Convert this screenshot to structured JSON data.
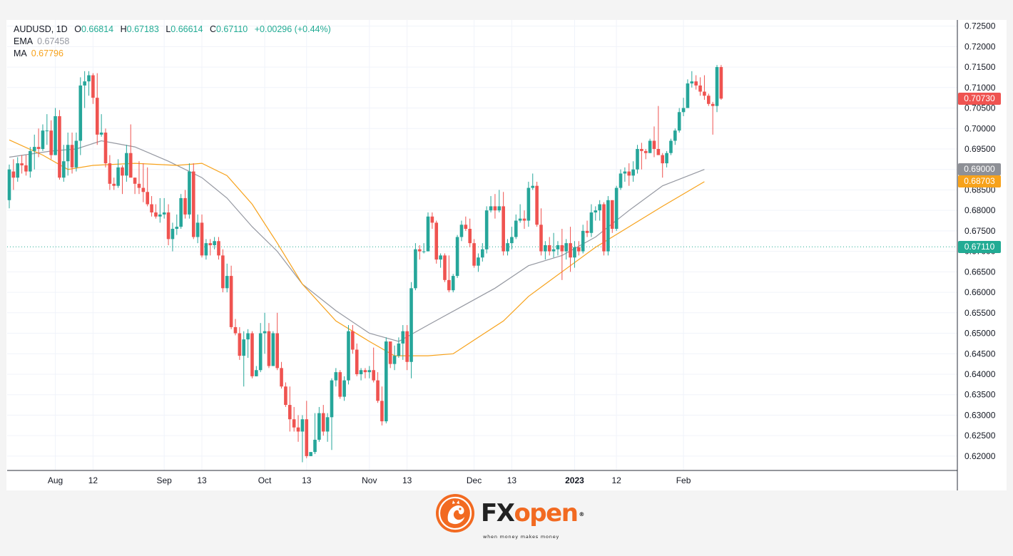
{
  "legend": {
    "symbol": "AUDUSD, 1D",
    "o_label": "O",
    "o_value": "0.66814",
    "h_label": "H",
    "h_value": "0.67183",
    "l_label": "L",
    "l_value": "0.66614",
    "c_label": "C",
    "c_value": "0.67110",
    "change": "+0.00296 (+0.44%)",
    "ema_label": "EMA",
    "ema_value": "0.67458",
    "ma_label": "MA",
    "ma_value": "0.67796"
  },
  "price_tags": {
    "last_close": "0.70730",
    "ema": "0.69000",
    "ma": "0.68703",
    "crosshair": "0.67110"
  },
  "colors": {
    "up": "#26a69a",
    "down": "#ef5350",
    "ema": "#9598a1",
    "ma": "#f7a21b",
    "tag_last": "#ef5350",
    "tag_ema": "#8e9096",
    "tag_ma": "#f7a21b",
    "tag_cross": "#22ab94",
    "brand_orange": "#f26a21"
  },
  "brand": {
    "name_part1": "FX",
    "name_part2": "open",
    "tagline": "when money makes money",
    "reg_mark": "®",
    "logo_icon": "dragon-logo-icon"
  },
  "chart_data": {
    "type": "candlestick",
    "symbol": "AUDUSD",
    "timeframe": "1D",
    "ylim": [
      0.6165,
      0.7265
    ],
    "y_ticks": [
      "0.72500",
      "0.72000",
      "0.71500",
      "0.71000",
      "0.70500",
      "0.70000",
      "0.69500",
      "0.69000",
      "0.68500",
      "0.68000",
      "0.67500",
      "0.67000",
      "0.66500",
      "0.66000",
      "0.65500",
      "0.65000",
      "0.64500",
      "0.64000",
      "0.63500",
      "0.63000",
      "0.62500",
      "0.62000"
    ],
    "x_labels": [
      {
        "label": "Aug",
        "index": 11,
        "bold": false
      },
      {
        "label": "12",
        "index": 20,
        "bold": false
      },
      {
        "label": "Sep",
        "index": 37,
        "bold": false
      },
      {
        "label": "13",
        "index": 46,
        "bold": false
      },
      {
        "label": "Oct",
        "index": 61,
        "bold": false
      },
      {
        "label": "13",
        "index": 71,
        "bold": false
      },
      {
        "label": "Nov",
        "index": 86,
        "bold": false
      },
      {
        "label": "13",
        "index": 95,
        "bold": false
      },
      {
        "label": "Dec",
        "index": 111,
        "bold": false
      },
      {
        "label": "13",
        "index": 120,
        "bold": false
      },
      {
        "label": "2023",
        "index": 135,
        "bold": true
      },
      {
        "label": "12",
        "index": 145,
        "bold": false
      },
      {
        "label": "Feb",
        "index": 161,
        "bold": false
      }
    ],
    "grid": true,
    "ohlc": [
      [
        0.6825,
        0.6912,
        0.6805,
        0.69
      ],
      [
        0.6895,
        0.6925,
        0.685,
        0.688
      ],
      [
        0.688,
        0.693,
        0.687,
        0.6915
      ],
      [
        0.6915,
        0.6935,
        0.689,
        0.691
      ],
      [
        0.691,
        0.6935,
        0.6885,
        0.6895
      ],
      [
        0.6895,
        0.6955,
        0.688,
        0.6945
      ],
      [
        0.6945,
        0.6985,
        0.69,
        0.6955
      ],
      [
        0.6955,
        0.7,
        0.693,
        0.695
      ],
      [
        0.695,
        0.701,
        0.6945,
        0.6995
      ],
      [
        0.6995,
        0.7035,
        0.696,
        0.6995
      ],
      [
        0.6995,
        0.702,
        0.6925,
        0.6935
      ],
      [
        0.6935,
        0.705,
        0.6935,
        0.703
      ],
      [
        0.703,
        0.7045,
        0.6875,
        0.688
      ],
      [
        0.688,
        0.696,
        0.687,
        0.692
      ],
      [
        0.692,
        0.699,
        0.6885,
        0.696
      ],
      [
        0.696,
        0.699,
        0.689,
        0.6905
      ],
      [
        0.6905,
        0.699,
        0.6895,
        0.697
      ],
      [
        0.697,
        0.7125,
        0.6935,
        0.7105
      ],
      [
        0.7105,
        0.714,
        0.705,
        0.7115
      ],
      [
        0.7115,
        0.714,
        0.708,
        0.713
      ],
      [
        0.713,
        0.7135,
        0.706,
        0.7075
      ],
      [
        0.7075,
        0.7135,
        0.696,
        0.6985
      ],
      [
        0.6985,
        0.7035,
        0.698,
        0.699
      ],
      [
        0.699,
        0.7,
        0.6905,
        0.6915
      ],
      [
        0.6915,
        0.6935,
        0.685,
        0.6865
      ],
      [
        0.6865,
        0.688,
        0.685,
        0.686
      ],
      [
        0.686,
        0.6925,
        0.6855,
        0.6905
      ],
      [
        0.6905,
        0.691,
        0.684,
        0.6885
      ],
      [
        0.6885,
        0.696,
        0.687,
        0.694
      ],
      [
        0.694,
        0.701,
        0.6885,
        0.688
      ],
      [
        0.688,
        0.688,
        0.684,
        0.6865
      ],
      [
        0.6865,
        0.692,
        0.684,
        0.6855
      ],
      [
        0.6855,
        0.6915,
        0.682,
        0.6845
      ],
      [
        0.6845,
        0.6905,
        0.681,
        0.6815
      ],
      [
        0.6815,
        0.6835,
        0.6785,
        0.6795
      ],
      [
        0.6795,
        0.6815,
        0.678,
        0.6785
      ],
      [
        0.6785,
        0.683,
        0.677,
        0.679
      ],
      [
        0.679,
        0.683,
        0.678,
        0.6795
      ],
      [
        0.6795,
        0.6815,
        0.6715,
        0.673
      ],
      [
        0.673,
        0.677,
        0.67,
        0.6755
      ],
      [
        0.6755,
        0.679,
        0.674,
        0.676
      ],
      [
        0.676,
        0.684,
        0.6755,
        0.683
      ],
      [
        0.683,
        0.685,
        0.678,
        0.679
      ],
      [
        0.679,
        0.6915,
        0.678,
        0.6895
      ],
      [
        0.6895,
        0.6915,
        0.673,
        0.6735
      ],
      [
        0.6735,
        0.679,
        0.672,
        0.677
      ],
      [
        0.677,
        0.679,
        0.6685,
        0.669
      ],
      [
        0.669,
        0.673,
        0.668,
        0.672
      ],
      [
        0.672,
        0.673,
        0.669,
        0.6715
      ],
      [
        0.6715,
        0.6735,
        0.6705,
        0.6725
      ],
      [
        0.6725,
        0.6735,
        0.668,
        0.669
      ],
      [
        0.669,
        0.6705,
        0.66,
        0.661
      ],
      [
        0.661,
        0.667,
        0.66,
        0.664
      ],
      [
        0.664,
        0.6665,
        0.651,
        0.6515
      ],
      [
        0.6515,
        0.6535,
        0.6495,
        0.65
      ],
      [
        0.65,
        0.6515,
        0.6435,
        0.6445
      ],
      [
        0.6445,
        0.6505,
        0.637,
        0.6485
      ],
      [
        0.6485,
        0.651,
        0.644,
        0.65
      ],
      [
        0.65,
        0.6505,
        0.639,
        0.6395
      ],
      [
        0.6395,
        0.642,
        0.6395,
        0.641
      ],
      [
        0.641,
        0.6525,
        0.6405,
        0.65
      ],
      [
        0.65,
        0.655,
        0.645,
        0.6505
      ],
      [
        0.6505,
        0.6525,
        0.6415,
        0.642
      ],
      [
        0.642,
        0.6505,
        0.642,
        0.65
      ],
      [
        0.65,
        0.655,
        0.641,
        0.6415
      ],
      [
        0.6415,
        0.643,
        0.6365,
        0.637
      ],
      [
        0.637,
        0.638,
        0.632,
        0.6325
      ],
      [
        0.6325,
        0.637,
        0.626,
        0.629
      ],
      [
        0.629,
        0.632,
        0.626,
        0.627
      ],
      [
        0.627,
        0.63,
        0.6235,
        0.626
      ],
      [
        0.626,
        0.63,
        0.6185,
        0.629
      ],
      [
        0.629,
        0.6335,
        0.6195,
        0.62
      ],
      [
        0.62,
        0.621,
        0.62,
        0.621
      ],
      [
        0.621,
        0.6305,
        0.6205,
        0.624
      ],
      [
        0.624,
        0.632,
        0.6235,
        0.6305
      ],
      [
        0.6305,
        0.6325,
        0.625,
        0.626
      ],
      [
        0.626,
        0.6305,
        0.6235,
        0.6295
      ],
      [
        0.6295,
        0.639,
        0.6215,
        0.6385
      ],
      [
        0.6385,
        0.6415,
        0.637,
        0.6405
      ],
      [
        0.6405,
        0.641,
        0.634,
        0.6345
      ],
      [
        0.6345,
        0.6395,
        0.6335,
        0.6385
      ],
      [
        0.6385,
        0.652,
        0.6375,
        0.6505
      ],
      [
        0.6505,
        0.652,
        0.645,
        0.646
      ],
      [
        0.646,
        0.6475,
        0.6395,
        0.64
      ],
      [
        0.64,
        0.6415,
        0.6385,
        0.641
      ],
      [
        0.641,
        0.6415,
        0.639,
        0.6405
      ],
      [
        0.6405,
        0.642,
        0.639,
        0.641
      ],
      [
        0.641,
        0.6465,
        0.638,
        0.6385
      ],
      [
        0.6385,
        0.6405,
        0.633,
        0.6335
      ],
      [
        0.6335,
        0.637,
        0.6275,
        0.6285
      ],
      [
        0.6285,
        0.649,
        0.628,
        0.648
      ],
      [
        0.648,
        0.648,
        0.6415,
        0.6425
      ],
      [
        0.6425,
        0.647,
        0.641,
        0.6445
      ],
      [
        0.6445,
        0.649,
        0.644,
        0.6475
      ],
      [
        0.6475,
        0.652,
        0.6435,
        0.6505
      ],
      [
        0.6505,
        0.652,
        0.641,
        0.643
      ],
      [
        0.643,
        0.6625,
        0.639,
        0.661
      ],
      [
        0.661,
        0.672,
        0.6605,
        0.6705
      ],
      [
        0.6705,
        0.6715,
        0.668,
        0.67
      ],
      [
        0.67,
        0.672,
        0.6695,
        0.67
      ],
      [
        0.67,
        0.6795,
        0.67,
        0.6785
      ],
      [
        0.6785,
        0.6795,
        0.6755,
        0.677
      ],
      [
        0.677,
        0.6775,
        0.667,
        0.668
      ],
      [
        0.668,
        0.6695,
        0.666,
        0.669
      ],
      [
        0.669,
        0.6695,
        0.6625,
        0.663
      ],
      [
        0.663,
        0.669,
        0.66,
        0.6605
      ],
      [
        0.6605,
        0.6645,
        0.66,
        0.664
      ],
      [
        0.664,
        0.674,
        0.6635,
        0.6735
      ],
      [
        0.6735,
        0.6775,
        0.6725,
        0.6765
      ],
      [
        0.6765,
        0.6785,
        0.675,
        0.6755
      ],
      [
        0.6755,
        0.678,
        0.671,
        0.672
      ],
      [
        0.672,
        0.673,
        0.666,
        0.6665
      ],
      [
        0.6665,
        0.6695,
        0.665,
        0.6685
      ],
      [
        0.6685,
        0.672,
        0.6675,
        0.6705
      ],
      [
        0.6705,
        0.681,
        0.6695,
        0.68
      ],
      [
        0.68,
        0.6835,
        0.6795,
        0.681
      ],
      [
        0.681,
        0.684,
        0.678,
        0.68
      ],
      [
        0.68,
        0.685,
        0.6795,
        0.681
      ],
      [
        0.681,
        0.6845,
        0.669,
        0.67
      ],
      [
        0.67,
        0.673,
        0.669,
        0.672
      ],
      [
        0.672,
        0.676,
        0.6705,
        0.6735
      ],
      [
        0.6735,
        0.679,
        0.673,
        0.6775
      ],
      [
        0.6775,
        0.6815,
        0.677,
        0.678
      ],
      [
        0.678,
        0.68,
        0.6755,
        0.6775
      ],
      [
        0.6775,
        0.687,
        0.676,
        0.6855
      ],
      [
        0.6855,
        0.689,
        0.685,
        0.686
      ],
      [
        0.686,
        0.687,
        0.676,
        0.6765
      ],
      [
        0.6765,
        0.6805,
        0.669,
        0.67
      ],
      [
        0.67,
        0.6725,
        0.668,
        0.6715
      ],
      [
        0.6715,
        0.6735,
        0.669,
        0.67
      ],
      [
        0.67,
        0.6745,
        0.6685,
        0.6705
      ],
      [
        0.6705,
        0.6725,
        0.669,
        0.6715
      ],
      [
        0.6715,
        0.6755,
        0.663,
        0.67
      ],
      [
        0.67,
        0.673,
        0.668,
        0.672
      ],
      [
        0.672,
        0.676,
        0.665,
        0.6685
      ],
      [
        0.6685,
        0.6725,
        0.666,
        0.671
      ],
      [
        0.671,
        0.6725,
        0.669,
        0.67
      ],
      [
        0.67,
        0.6765,
        0.6695,
        0.675
      ],
      [
        0.675,
        0.6775,
        0.6735,
        0.6745
      ],
      [
        0.6745,
        0.6815,
        0.6735,
        0.6795
      ],
      [
        0.6795,
        0.681,
        0.6775,
        0.68
      ],
      [
        0.68,
        0.6825,
        0.6775,
        0.6815
      ],
      [
        0.6815,
        0.682,
        0.669,
        0.67
      ],
      [
        0.67,
        0.6835,
        0.669,
        0.6825
      ],
      [
        0.6825,
        0.6825,
        0.6745,
        0.6755
      ],
      [
        0.6755,
        0.686,
        0.675,
        0.6855
      ],
      [
        0.6855,
        0.69,
        0.685,
        0.689
      ],
      [
        0.689,
        0.6905,
        0.687,
        0.6895
      ],
      [
        0.6895,
        0.6915,
        0.686,
        0.6885
      ],
      [
        0.6885,
        0.692,
        0.687,
        0.69
      ],
      [
        0.69,
        0.696,
        0.689,
        0.695
      ],
      [
        0.695,
        0.6965,
        0.69,
        0.6945
      ],
      [
        0.6945,
        0.695,
        0.6925,
        0.694
      ],
      [
        0.694,
        0.6975,
        0.694,
        0.697
      ],
      [
        0.697,
        0.7005,
        0.693,
        0.695
      ],
      [
        0.695,
        0.7055,
        0.6945,
        0.6935
      ],
      [
        0.6935,
        0.694,
        0.688,
        0.6915
      ],
      [
        0.6915,
        0.6945,
        0.6905,
        0.694
      ],
      [
        0.694,
        0.6975,
        0.6935,
        0.697
      ],
      [
        0.697,
        0.7,
        0.696,
        0.6995
      ],
      [
        0.6995,
        0.705,
        0.699,
        0.704
      ],
      [
        0.704,
        0.7075,
        0.703,
        0.705
      ],
      [
        0.705,
        0.712,
        0.705,
        0.711
      ],
      [
        0.711,
        0.714,
        0.71,
        0.7115
      ],
      [
        0.7115,
        0.713,
        0.7095,
        0.7105
      ],
      [
        0.7105,
        0.7125,
        0.708,
        0.709
      ],
      [
        0.709,
        0.713,
        0.707,
        0.708
      ],
      [
        0.708,
        0.7085,
        0.7055,
        0.706
      ],
      [
        0.706,
        0.7065,
        0.6985,
        0.7055
      ],
      [
        0.7055,
        0.7155,
        0.704,
        0.715
      ],
      [
        0.715,
        0.7155,
        0.707,
        0.7073
      ]
    ],
    "ema": [
      [
        0,
        0.693
      ],
      [
        10,
        0.6945
      ],
      [
        16,
        0.695
      ],
      [
        22,
        0.697
      ],
      [
        30,
        0.6955
      ],
      [
        38,
        0.692
      ],
      [
        46,
        0.688
      ],
      [
        52,
        0.683
      ],
      [
        58,
        0.676
      ],
      [
        64,
        0.67
      ],
      [
        70,
        0.662
      ],
      [
        78,
        0.6555
      ],
      [
        86,
        0.65
      ],
      [
        93,
        0.648
      ],
      [
        100,
        0.652
      ],
      [
        108,
        0.6565
      ],
      [
        116,
        0.661
      ],
      [
        124,
        0.6665
      ],
      [
        132,
        0.669
      ],
      [
        140,
        0.6735
      ],
      [
        148,
        0.68
      ],
      [
        156,
        0.686
      ],
      [
        166,
        0.69
      ]
    ],
    "ma": [
      [
        0,
        0.6972
      ],
      [
        8,
        0.6935
      ],
      [
        14,
        0.69
      ],
      [
        20,
        0.691
      ],
      [
        30,
        0.6915
      ],
      [
        40,
        0.691
      ],
      [
        46,
        0.6915
      ],
      [
        52,
        0.6885
      ],
      [
        58,
        0.6815
      ],
      [
        64,
        0.672
      ],
      [
        70,
        0.662
      ],
      [
        78,
        0.653
      ],
      [
        86,
        0.648
      ],
      [
        92,
        0.6445
      ],
      [
        100,
        0.6445
      ],
      [
        106,
        0.645
      ],
      [
        112,
        0.649
      ],
      [
        118,
        0.653
      ],
      [
        124,
        0.659
      ],
      [
        132,
        0.665
      ],
      [
        140,
        0.671
      ],
      [
        148,
        0.676
      ],
      [
        156,
        0.681
      ],
      [
        166,
        0.687
      ]
    ],
    "crosshair_price": 0.6711
  }
}
